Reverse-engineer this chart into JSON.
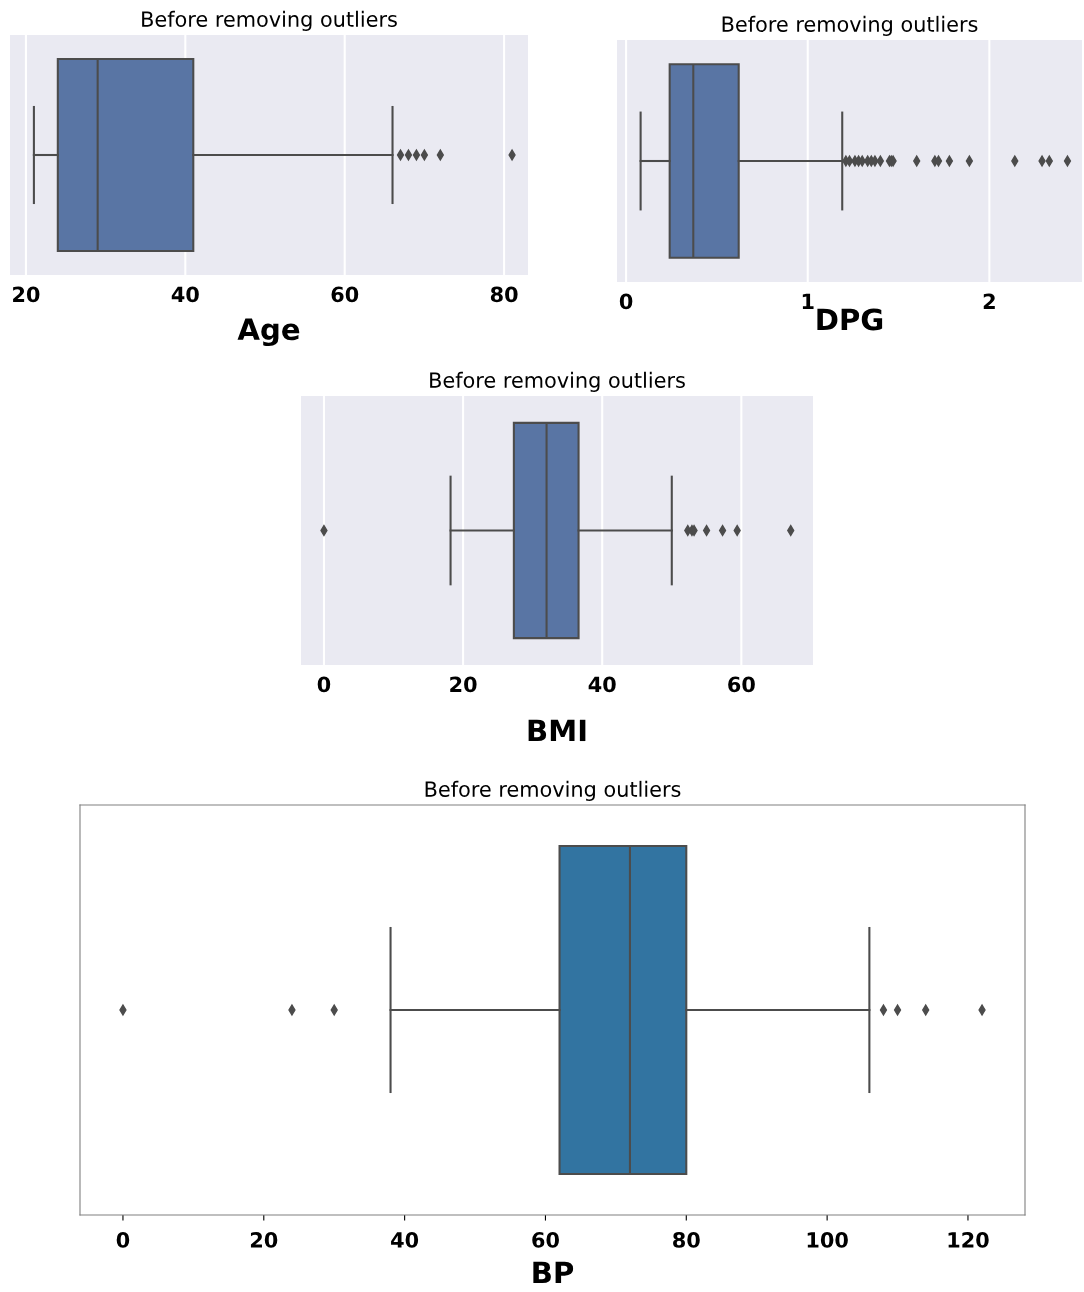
{
  "chart_data": [
    {
      "type": "box",
      "title": "Before removing outliers",
      "xlabel": "Age",
      "categories": [
        null
      ],
      "orientation": "horizontal",
      "color": "#5975a4",
      "grid": "x",
      "marker": "diamond",
      "tick_labels": "x",
      "xlim": [
        18,
        83
      ],
      "xticks": [
        20,
        40,
        60,
        80
      ],
      "boxes": [
        {
          "low": 21,
          "q1": 24,
          "median": 29,
          "q3": 41,
          "high": 66,
          "outliers": [
            67,
            68,
            69,
            70,
            72,
            81
          ]
        }
      ]
    },
    {
      "type": "box",
      "title": "Before removing outliers",
      "xlabel": "DPG",
      "categories": [
        null
      ],
      "orientation": "horizontal",
      "color": "#5975a4",
      "grid": "x",
      "marker": "diamond",
      "tick_labels": "x",
      "xlim": [
        -0.05,
        2.51
      ],
      "xticks": [
        0,
        1,
        2
      ],
      "boxes": [
        {
          "low": 0.08,
          "q1": 0.24,
          "median": 0.37,
          "q3": 0.62,
          "high": 1.19,
          "outliers": [
            1.21,
            1.23,
            1.26,
            1.28,
            1.3,
            1.33,
            1.35,
            1.37,
            1.4,
            1.45,
            1.46,
            1.47,
            1.6,
            1.7,
            1.72,
            1.78,
            1.89,
            2.14,
            2.29,
            2.33,
            2.43
          ]
        }
      ]
    },
    {
      "type": "box",
      "title": "Before removing outliers",
      "xlabel": "BMI",
      "categories": [
        null
      ],
      "orientation": "horizontal",
      "color": "#5975a4",
      "grid": "x",
      "marker": "diamond",
      "tick_labels": "x",
      "xlim": [
        -3.3,
        70.3
      ],
      "xticks": [
        0,
        20,
        40,
        60
      ],
      "boxes": [
        {
          "low": 18.2,
          "q1": 27.3,
          "median": 32,
          "q3": 36.6,
          "high": 50,
          "outliers": [
            0,
            52.3,
            52.9,
            53.2,
            55,
            57.3,
            59.4,
            67.1
          ]
        }
      ]
    },
    {
      "type": "box",
      "title": "Before removing outliers",
      "xlabel": "BP",
      "categories": [
        null
      ],
      "orientation": "horizontal",
      "color": "#3274a1",
      "grid": false,
      "marker": "diamond",
      "tick_labels": "x",
      "xlim": [
        -6.1,
        128.1
      ],
      "xticks": [
        0,
        20,
        40,
        60,
        80,
        100,
        120
      ],
      "boxes": [
        {
          "low": 38,
          "q1": 62,
          "median": 72,
          "q3": 80,
          "high": 106,
          "outliers": [
            0,
            24,
            30,
            108,
            110,
            114,
            122
          ]
        }
      ]
    }
  ]
}
